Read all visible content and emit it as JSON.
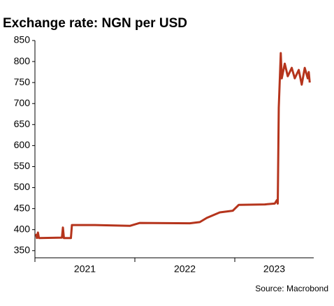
{
  "chart_data": {
    "type": "line",
    "title": "Exchange rate: NGN per USD",
    "source": "Source: Macrobond",
    "x": [
      2021.01,
      2021.02,
      2021.03,
      2021.04,
      2021.27,
      2021.28,
      2021.29,
      2021.36,
      2021.37,
      2021.6,
      2021.95,
      2022.05,
      2022.55,
      2022.65,
      2022.72,
      2022.85,
      2022.98,
      2023.04,
      2023.3,
      2023.4,
      2023.42,
      2023.43,
      2023.44,
      2023.46,
      2023.47,
      2023.5,
      2023.53,
      2023.57,
      2023.6,
      2023.64,
      2023.67,
      2023.7,
      2023.73,
      2023.74,
      2023.75
    ],
    "series": [
      {
        "name": "NGN per USD",
        "color": "#b5341c",
        "values": [
          390,
          380,
          393,
          380,
          381,
          405,
          380,
          380,
          411,
          411,
          409,
          416,
          415,
          418,
          428,
          441,
          445,
          459,
          460,
          462,
          470,
          462,
          690,
          820,
          760,
          795,
          765,
          785,
          760,
          780,
          745,
          785,
          760,
          775,
          750
        ]
      }
    ],
    "xlim": [
      2021,
      2023.79
    ],
    "xticks": [
      {
        "value": 2021,
        "label": "2021"
      },
      {
        "value": 2022,
        "label": "2022"
      },
      {
        "value": 2023,
        "label": "2023"
      }
    ],
    "ylim": [
      333,
      855
    ],
    "yticks": [
      350,
      400,
      450,
      500,
      550,
      600,
      650,
      700,
      750,
      800,
      850
    ]
  }
}
